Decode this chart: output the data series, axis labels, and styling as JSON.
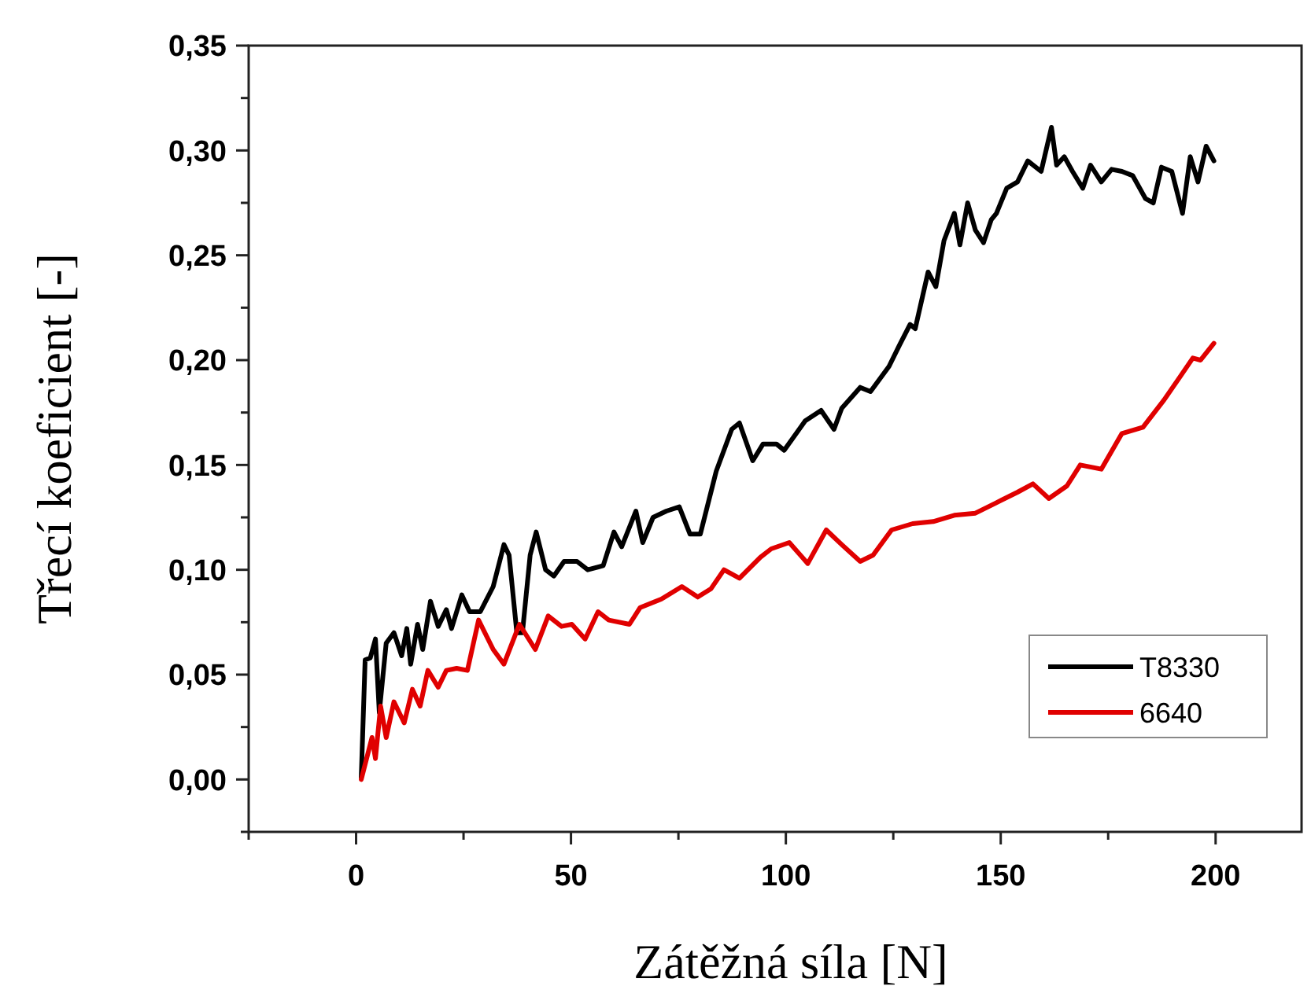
{
  "chart_data": {
    "type": "line",
    "xlabel": "Zátěžná síla [N]",
    "ylabel": "Třecí koeficient [-]",
    "xlim": [
      -25,
      220
    ],
    "ylim": [
      -0.025,
      0.35
    ],
    "xticks": [
      {
        "value": -25,
        "label": null
      },
      {
        "value": 0,
        "label": "0"
      },
      {
        "value": 25,
        "label": null
      },
      {
        "value": 50,
        "label": "50"
      },
      {
        "value": 75,
        "label": null
      },
      {
        "value": 100,
        "label": "100"
      },
      {
        "value": 125,
        "label": null
      },
      {
        "value": 150,
        "label": "150"
      },
      {
        "value": 175,
        "label": null
      },
      {
        "value": 200,
        "label": "200"
      }
    ],
    "yticks": [
      {
        "value": -0.025,
        "label": null
      },
      {
        "value": 0,
        "label": "0,00"
      },
      {
        "value": 0.025,
        "label": null
      },
      {
        "value": 0.05,
        "label": "0,05"
      },
      {
        "value": 0.075,
        "label": null
      },
      {
        "value": 0.1,
        "label": "0,10"
      },
      {
        "value": 0.125,
        "label": null
      },
      {
        "value": 0.15,
        "label": "0,15"
      },
      {
        "value": 0.175,
        "label": null
      },
      {
        "value": 0.2,
        "label": "0,20"
      },
      {
        "value": 0.225,
        "label": null
      },
      {
        "value": 0.25,
        "label": "0,25"
      },
      {
        "value": 0.275,
        "label": null
      },
      {
        "value": 0.3,
        "label": "0,30"
      },
      {
        "value": 0.325,
        "label": null
      },
      {
        "value": 0.35,
        "label": "0,35"
      }
    ],
    "grid": false,
    "legend": "bottom right",
    "marker": "none",
    "line_style": "solid",
    "series": [
      {
        "name": "T8330",
        "color": "#000000",
        "x": [
          1.2,
          2.1,
          3.3,
          4.5,
          5.4,
          7,
          8.8,
          10.6,
          11.8,
          12.7,
          14.3,
          15.5,
          17.3,
          19.1,
          21,
          22.2,
          24.6,
          26.4,
          28.9,
          31.9,
          34.4,
          35.6,
          37.4,
          38.7,
          40.5,
          41.9,
          44.1,
          46,
          48.4,
          51.4,
          53.9,
          57.5,
          60,
          61.8,
          65.1,
          66.7,
          69.1,
          72.2,
          75.2,
          77.7,
          80.1,
          83.8,
          87.4,
          89.2,
          92.3,
          94.7,
          97.8,
          99.6,
          104.5,
          108.2,
          111.2,
          113,
          117.3,
          119.7,
          124,
          126.4,
          128.9,
          130.1,
          133.1,
          134.9,
          136.8,
          139.2,
          140.5,
          142.3,
          144.1,
          146,
          147.8,
          149,
          151.4,
          153.9,
          156.3,
          159.4,
          161.8,
          163,
          164.8,
          166.7,
          169.1,
          170.9,
          173.4,
          175.8,
          178.2,
          180.7,
          183.7,
          185.5,
          187.4,
          189.8,
          192.3,
          194.1,
          195.9,
          197.8,
          199.6
        ],
        "values": [
          0.001,
          0.057,
          0.058,
          0.067,
          0.032,
          0.065,
          0.07,
          0.059,
          0.072,
          0.055,
          0.074,
          0.062,
          0.085,
          0.073,
          0.081,
          0.072,
          0.088,
          0.08,
          0.08,
          0.092,
          0.112,
          0.107,
          0.07,
          0.07,
          0.107,
          0.118,
          0.1,
          0.097,
          0.104,
          0.104,
          0.1,
          0.102,
          0.118,
          0.111,
          0.128,
          0.113,
          0.125,
          0.128,
          0.13,
          0.117,
          0.117,
          0.147,
          0.167,
          0.17,
          0.152,
          0.16,
          0.16,
          0.157,
          0.171,
          0.176,
          0.167,
          0.177,
          0.187,
          0.185,
          0.197,
          0.207,
          0.217,
          0.215,
          0.242,
          0.235,
          0.257,
          0.27,
          0.255,
          0.275,
          0.262,
          0.256,
          0.267,
          0.27,
          0.282,
          0.285,
          0.295,
          0.29,
          0.311,
          0.293,
          0.297,
          0.29,
          0.282,
          0.293,
          0.285,
          0.291,
          0.29,
          0.288,
          0.277,
          0.275,
          0.292,
          0.29,
          0.27,
          0.297,
          0.285,
          0.302,
          0.295
        ]
      },
      {
        "name": "6640",
        "color": "#e00000",
        "x": [
          1.2,
          3.7,
          4.5,
          5.7,
          7,
          8.8,
          11.2,
          13.1,
          14.9,
          16.7,
          19.1,
          21,
          23.4,
          25.9,
          28.5,
          31.9,
          34.4,
          38,
          41.7,
          44.7,
          47.8,
          50.2,
          53.3,
          56.3,
          58.8,
          63.6,
          66.1,
          71,
          75.8,
          79.5,
          82.6,
          85.6,
          89.2,
          94.1,
          96.6,
          100.8,
          105.1,
          109.4,
          113,
          117.3,
          120.3,
          124.6,
          129.5,
          134.3,
          139.2,
          144.1,
          149,
          153.9,
          157.5,
          161.2,
          165.4,
          168.5,
          173.4,
          178.2,
          183.1,
          188,
          191.7,
          194.7,
          196.5,
          199.6
        ],
        "values": [
          0,
          0.02,
          0.01,
          0.035,
          0.02,
          0.037,
          0.027,
          0.043,
          0.035,
          0.052,
          0.044,
          0.052,
          0.053,
          0.052,
          0.076,
          0.062,
          0.055,
          0.074,
          0.062,
          0.078,
          0.073,
          0.074,
          0.067,
          0.08,
          0.076,
          0.074,
          0.082,
          0.086,
          0.092,
          0.087,
          0.091,
          0.1,
          0.096,
          0.106,
          0.11,
          0.113,
          0.103,
          0.119,
          0.112,
          0.104,
          0.107,
          0.119,
          0.122,
          0.123,
          0.126,
          0.127,
          0.132,
          0.137,
          0.141,
          0.134,
          0.14,
          0.15,
          0.148,
          0.165,
          0.168,
          0.181,
          0.192,
          0.201,
          0.2,
          0.208
        ]
      }
    ]
  }
}
